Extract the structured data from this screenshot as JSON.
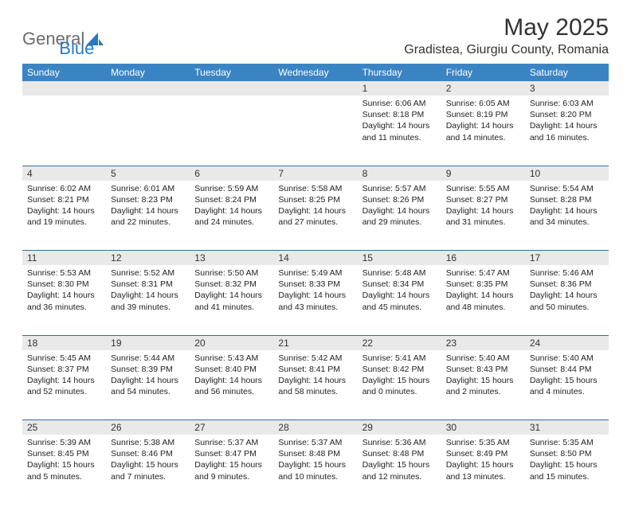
{
  "logo": {
    "part1": "General",
    "part2": "Blue"
  },
  "title": "May 2025",
  "location": "Gradistea, Giurgiu County, Romania",
  "columns": [
    "Sunday",
    "Monday",
    "Tuesday",
    "Wednesday",
    "Thursday",
    "Friday",
    "Saturday"
  ],
  "colors": {
    "header_bg": "#3b84c4",
    "header_text": "#ffffff",
    "daynum_bg": "#e9e9e9",
    "border": "#3b6a94",
    "logo_gray": "#6b6b6b",
    "logo_blue": "#2a79c0"
  },
  "weeks": [
    {
      "nums": [
        "",
        "",
        "",
        "",
        "1",
        "2",
        "3"
      ],
      "cells": [
        null,
        null,
        null,
        null,
        {
          "sunrise": "Sunrise: 6:06 AM",
          "sunset": "Sunset: 8:18 PM",
          "day1": "Daylight: 14 hours",
          "day2": "and 11 minutes."
        },
        {
          "sunrise": "Sunrise: 6:05 AM",
          "sunset": "Sunset: 8:19 PM",
          "day1": "Daylight: 14 hours",
          "day2": "and 14 minutes."
        },
        {
          "sunrise": "Sunrise: 6:03 AM",
          "sunset": "Sunset: 8:20 PM",
          "day1": "Daylight: 14 hours",
          "day2": "and 16 minutes."
        }
      ]
    },
    {
      "nums": [
        "4",
        "5",
        "6",
        "7",
        "8",
        "9",
        "10"
      ],
      "cells": [
        {
          "sunrise": "Sunrise: 6:02 AM",
          "sunset": "Sunset: 8:21 PM",
          "day1": "Daylight: 14 hours",
          "day2": "and 19 minutes."
        },
        {
          "sunrise": "Sunrise: 6:01 AM",
          "sunset": "Sunset: 8:23 PM",
          "day1": "Daylight: 14 hours",
          "day2": "and 22 minutes."
        },
        {
          "sunrise": "Sunrise: 5:59 AM",
          "sunset": "Sunset: 8:24 PM",
          "day1": "Daylight: 14 hours",
          "day2": "and 24 minutes."
        },
        {
          "sunrise": "Sunrise: 5:58 AM",
          "sunset": "Sunset: 8:25 PM",
          "day1": "Daylight: 14 hours",
          "day2": "and 27 minutes."
        },
        {
          "sunrise": "Sunrise: 5:57 AM",
          "sunset": "Sunset: 8:26 PM",
          "day1": "Daylight: 14 hours",
          "day2": "and 29 minutes."
        },
        {
          "sunrise": "Sunrise: 5:55 AM",
          "sunset": "Sunset: 8:27 PM",
          "day1": "Daylight: 14 hours",
          "day2": "and 31 minutes."
        },
        {
          "sunrise": "Sunrise: 5:54 AM",
          "sunset": "Sunset: 8:28 PM",
          "day1": "Daylight: 14 hours",
          "day2": "and 34 minutes."
        }
      ]
    },
    {
      "nums": [
        "11",
        "12",
        "13",
        "14",
        "15",
        "16",
        "17"
      ],
      "cells": [
        {
          "sunrise": "Sunrise: 5:53 AM",
          "sunset": "Sunset: 8:30 PM",
          "day1": "Daylight: 14 hours",
          "day2": "and 36 minutes."
        },
        {
          "sunrise": "Sunrise: 5:52 AM",
          "sunset": "Sunset: 8:31 PM",
          "day1": "Daylight: 14 hours",
          "day2": "and 39 minutes."
        },
        {
          "sunrise": "Sunrise: 5:50 AM",
          "sunset": "Sunset: 8:32 PM",
          "day1": "Daylight: 14 hours",
          "day2": "and 41 minutes."
        },
        {
          "sunrise": "Sunrise: 5:49 AM",
          "sunset": "Sunset: 8:33 PM",
          "day1": "Daylight: 14 hours",
          "day2": "and 43 minutes."
        },
        {
          "sunrise": "Sunrise: 5:48 AM",
          "sunset": "Sunset: 8:34 PM",
          "day1": "Daylight: 14 hours",
          "day2": "and 45 minutes."
        },
        {
          "sunrise": "Sunrise: 5:47 AM",
          "sunset": "Sunset: 8:35 PM",
          "day1": "Daylight: 14 hours",
          "day2": "and 48 minutes."
        },
        {
          "sunrise": "Sunrise: 5:46 AM",
          "sunset": "Sunset: 8:36 PM",
          "day1": "Daylight: 14 hours",
          "day2": "and 50 minutes."
        }
      ]
    },
    {
      "nums": [
        "18",
        "19",
        "20",
        "21",
        "22",
        "23",
        "24"
      ],
      "cells": [
        {
          "sunrise": "Sunrise: 5:45 AM",
          "sunset": "Sunset: 8:37 PM",
          "day1": "Daylight: 14 hours",
          "day2": "and 52 minutes."
        },
        {
          "sunrise": "Sunrise: 5:44 AM",
          "sunset": "Sunset: 8:39 PM",
          "day1": "Daylight: 14 hours",
          "day2": "and 54 minutes."
        },
        {
          "sunrise": "Sunrise: 5:43 AM",
          "sunset": "Sunset: 8:40 PM",
          "day1": "Daylight: 14 hours",
          "day2": "and 56 minutes."
        },
        {
          "sunrise": "Sunrise: 5:42 AM",
          "sunset": "Sunset: 8:41 PM",
          "day1": "Daylight: 14 hours",
          "day2": "and 58 minutes."
        },
        {
          "sunrise": "Sunrise: 5:41 AM",
          "sunset": "Sunset: 8:42 PM",
          "day1": "Daylight: 15 hours",
          "day2": "and 0 minutes."
        },
        {
          "sunrise": "Sunrise: 5:40 AM",
          "sunset": "Sunset: 8:43 PM",
          "day1": "Daylight: 15 hours",
          "day2": "and 2 minutes."
        },
        {
          "sunrise": "Sunrise: 5:40 AM",
          "sunset": "Sunset: 8:44 PM",
          "day1": "Daylight: 15 hours",
          "day2": "and 4 minutes."
        }
      ]
    },
    {
      "nums": [
        "25",
        "26",
        "27",
        "28",
        "29",
        "30",
        "31"
      ],
      "cells": [
        {
          "sunrise": "Sunrise: 5:39 AM",
          "sunset": "Sunset: 8:45 PM",
          "day1": "Daylight: 15 hours",
          "day2": "and 5 minutes."
        },
        {
          "sunrise": "Sunrise: 5:38 AM",
          "sunset": "Sunset: 8:46 PM",
          "day1": "Daylight: 15 hours",
          "day2": "and 7 minutes."
        },
        {
          "sunrise": "Sunrise: 5:37 AM",
          "sunset": "Sunset: 8:47 PM",
          "day1": "Daylight: 15 hours",
          "day2": "and 9 minutes."
        },
        {
          "sunrise": "Sunrise: 5:37 AM",
          "sunset": "Sunset: 8:48 PM",
          "day1": "Daylight: 15 hours",
          "day2": "and 10 minutes."
        },
        {
          "sunrise": "Sunrise: 5:36 AM",
          "sunset": "Sunset: 8:48 PM",
          "day1": "Daylight: 15 hours",
          "day2": "and 12 minutes."
        },
        {
          "sunrise": "Sunrise: 5:35 AM",
          "sunset": "Sunset: 8:49 PM",
          "day1": "Daylight: 15 hours",
          "day2": "and 13 minutes."
        },
        {
          "sunrise": "Sunrise: 5:35 AM",
          "sunset": "Sunset: 8:50 PM",
          "day1": "Daylight: 15 hours",
          "day2": "and 15 minutes."
        }
      ]
    }
  ]
}
